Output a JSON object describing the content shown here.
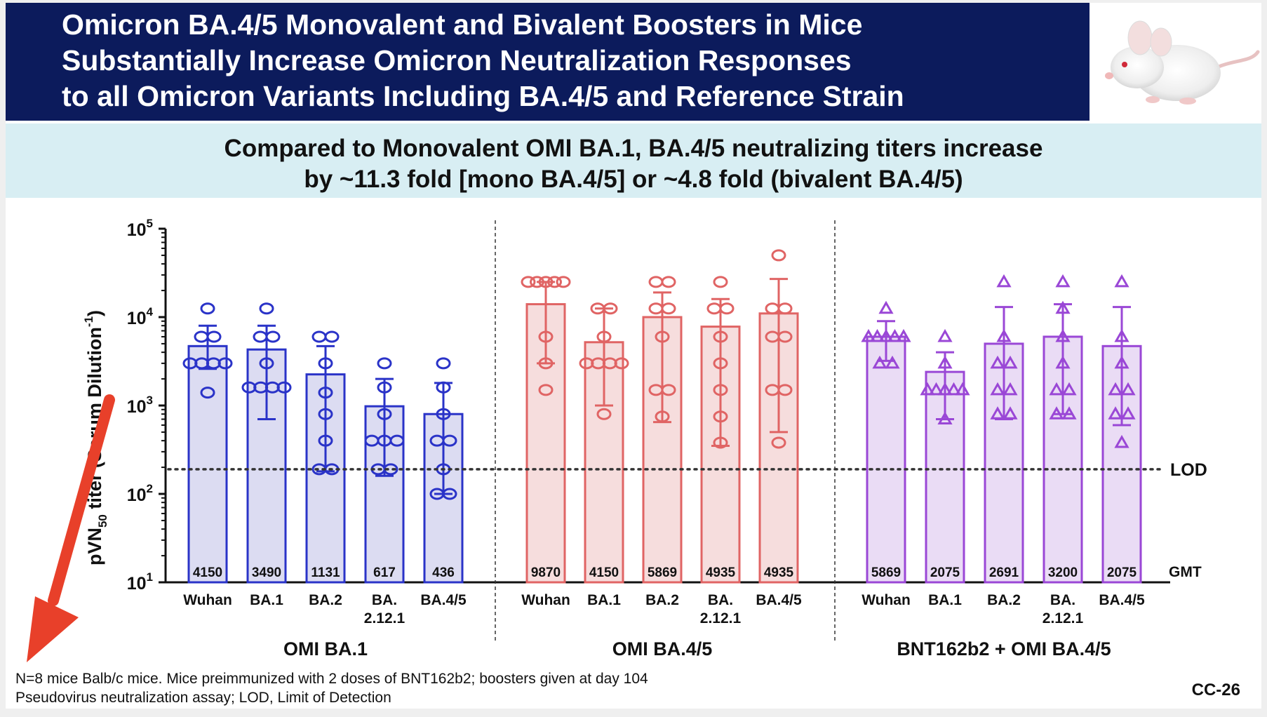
{
  "slide": {
    "title_lines": [
      "Omicron BA.4/5 Monovalent and Bivalent Boosters in Mice",
      "Substantially Increase Omicron Neutralization Responses",
      "to all Omicron Variants Including BA.4/5 and Reference Strain"
    ],
    "subtitle_lines": [
      "Compared to Monovalent OMI BA.1, BA.4/5 neutralizing titers increase",
      "by ~11.3 fold [mono BA.4/5] or ~4.8 fold (bivalent BA.4/5)"
    ],
    "footnotes": [
      "N=8 mice Balb/c mice. Mice preimmunized with 2 doses of BNT162b2; boosters given at day 104",
      "Pseudovirus neutralization assay; LOD, Limit of Detection"
    ],
    "slide_code": "CC-26",
    "image_icon": "white-mouse-photo",
    "annotation_icon": "red-arrow-icon",
    "colors": {
      "title_bg": "#0c1b5c",
      "subtitle_bg": "#d8eef3",
      "arrow": "#e8402a"
    }
  },
  "chart_data": {
    "type": "bar",
    "ylabel_main": "pVN",
    "ylabel_sub": "50",
    "ylabel_rest": " titer (Serum Dilution",
    "ylabel_sup": "-1",
    "ylabel_end": ")",
    "yscale": "log",
    "ylim": [
      10,
      100000
    ],
    "yticks": [
      {
        "value": 10,
        "base": "10",
        "exp": "1"
      },
      {
        "value": 100,
        "base": "10",
        "exp": "2"
      },
      {
        "value": 1000,
        "base": "10",
        "exp": "3"
      },
      {
        "value": 10000,
        "base": "10",
        "exp": "4"
      },
      {
        "value": 100000,
        "base": "10",
        "exp": "5"
      }
    ],
    "lod_label": "LOD",
    "lod_value": 190,
    "gmt_label": "GMT",
    "categories": [
      "Wuhan",
      "BA.1",
      "BA.2",
      "BA.2.12.1",
      "BA.4/5"
    ],
    "category_labels": [
      [
        "Wuhan"
      ],
      [
        "BA.1"
      ],
      [
        "BA.2"
      ],
      [
        "BA.",
        "2.12.1"
      ],
      [
        "BA.4/5"
      ]
    ],
    "groups": [
      {
        "name": "OMI BA.1",
        "color": "#2a33c8",
        "fill": "#dcdcf2",
        "marker": "circle",
        "gmt_labels": [
          "4150",
          "3490",
          "1131",
          "617",
          "436"
        ],
        "bar_values": [
          4700,
          4300,
          2250,
          980,
          800
        ],
        "error_upper": [
          8000,
          8000,
          4700,
          2000,
          1800
        ],
        "error_lower": [
          2600,
          700,
          180,
          160,
          100
        ],
        "points": [
          [
            12500,
            6000,
            6000,
            3000,
            3000,
            3000,
            3000,
            1400
          ],
          [
            12500,
            6000,
            6000,
            3000,
            1600,
            1600,
            1600,
            1600
          ],
          [
            6000,
            6000,
            3000,
            1400,
            800,
            400,
            190,
            190
          ],
          [
            3000,
            1600,
            800,
            400,
            400,
            400,
            190,
            190
          ],
          [
            3000,
            1600,
            800,
            400,
            400,
            190,
            100,
            100
          ]
        ]
      },
      {
        "name": "OMI BA.4/5",
        "color": "#e06464",
        "fill": "#f6dddd",
        "marker": "circle",
        "gmt_labels": [
          "9870",
          "4150",
          "5869",
          "4935",
          "4935"
        ],
        "bar_values": [
          14000,
          5200,
          10000,
          7800,
          11000
        ],
        "error_upper": [
          25000,
          12500,
          19000,
          16000,
          27000
        ],
        "error_lower": [
          3000,
          1000,
          650,
          350,
          500
        ],
        "points": [
          [
            25000,
            25000,
            25000,
            25000,
            25000,
            6000,
            3000,
            1500
          ],
          [
            12500,
            12500,
            6000,
            3000,
            3000,
            3000,
            3000,
            800
          ],
          [
            25000,
            25000,
            12500,
            12500,
            6000,
            1500,
            1500,
            750
          ],
          [
            25000,
            12500,
            12500,
            6000,
            3000,
            1500,
            750,
            380
          ],
          [
            50000,
            12500,
            12500,
            6000,
            6000,
            1500,
            1500,
            380
          ]
        ]
      },
      {
        "name": "BNT162b2 + OMI BA.4/5",
        "color": "#9a47d6",
        "fill": "#eadcf5",
        "marker": "triangle",
        "gmt_labels": [
          "5869",
          "2075",
          "2691",
          "3200",
          "2075"
        ],
        "bar_values": [
          6000,
          2400,
          5000,
          6000,
          4700
        ],
        "error_upper": [
          9000,
          4000,
          13000,
          14000,
          13000
        ],
        "error_lower": [
          3200,
          700,
          700,
          800,
          600
        ],
        "points": [
          [
            12500,
            6000,
            6000,
            6000,
            6000,
            6000,
            3000,
            3000
          ],
          [
            6000,
            3000,
            1500,
            1500,
            1500,
            1500,
            1500,
            700
          ],
          [
            25000,
            6000,
            3000,
            3000,
            1500,
            1500,
            800,
            800
          ],
          [
            25000,
            12500,
            6000,
            3000,
            1500,
            1500,
            800,
            800
          ],
          [
            25000,
            6000,
            3000,
            1500,
            1500,
            800,
            800,
            380
          ]
        ]
      }
    ]
  }
}
